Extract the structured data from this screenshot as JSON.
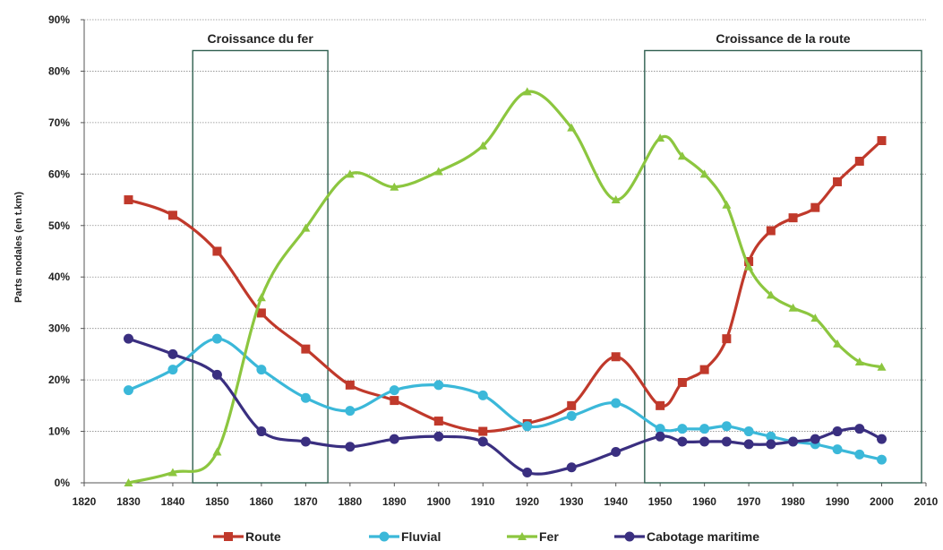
{
  "chart_data": {
    "type": "line",
    "title": "",
    "xlabel": "",
    "ylabel": "Parts modales (en t.km)",
    "xlim": [
      1820,
      2010
    ],
    "ylim": [
      0,
      90
    ],
    "x_ticks": [
      "1820",
      "1830",
      "1840",
      "1850",
      "1860",
      "1870",
      "1880",
      "1890",
      "1900",
      "1910",
      "1920",
      "1930",
      "1940",
      "1950",
      "1960",
      "1970",
      "1980",
      "1990",
      "2000",
      "2010"
    ],
    "y_ticks": [
      "0%",
      "10%",
      "20%",
      "30%",
      "40%",
      "50%",
      "60%",
      "70%",
      "80%",
      "90%"
    ],
    "grid": true,
    "legend_position": "bottom",
    "annotations": [
      {
        "label": "Croissance du fer",
        "x_start": 1844.5,
        "x_end": 1875
      },
      {
        "label": "Croissance de la route",
        "x_start": 1946.5,
        "x_end": 2009
      }
    ],
    "series": [
      {
        "name": "Route",
        "color": "#c0392b",
        "marker": "square",
        "x": [
          1830,
          1840,
          1850,
          1860,
          1870,
          1880,
          1890,
          1900,
          1910,
          1920,
          1930,
          1940,
          1950,
          1955,
          1960,
          1965,
          1970,
          1975,
          1980,
          1985,
          1990,
          1995,
          2000
        ],
        "y": [
          55,
          52,
          45,
          33,
          26,
          19,
          16,
          12,
          10,
          11.5,
          15,
          24.5,
          15,
          19.5,
          22,
          28,
          43,
          49,
          51.5,
          53.5,
          58.5,
          62.5,
          66.5
        ]
      },
      {
        "name": "Fluvial",
        "color": "#3bb8d9",
        "marker": "circle",
        "x": [
          1830,
          1840,
          1850,
          1860,
          1870,
          1880,
          1890,
          1900,
          1910,
          1920,
          1930,
          1940,
          1950,
          1955,
          1960,
          1965,
          1970,
          1975,
          1980,
          1985,
          1990,
          1995,
          2000
        ],
        "y": [
          18,
          22,
          28,
          22,
          16.5,
          14,
          18,
          19,
          17,
          11,
          13,
          15.5,
          10.5,
          10.5,
          10.5,
          11,
          10,
          9,
          8,
          7.5,
          6.5,
          5.5,
          4.5
        ]
      },
      {
        "name": "Fer",
        "color": "#8cc63f",
        "marker": "triangle",
        "x": [
          1830,
          1840,
          1850,
          1860,
          1870,
          1880,
          1890,
          1900,
          1910,
          1920,
          1930,
          1940,
          1950,
          1955,
          1960,
          1965,
          1970,
          1975,
          1980,
          1985,
          1990,
          1995,
          2000
        ],
        "y": [
          0,
          2,
          6,
          36,
          49.5,
          60,
          57.5,
          60.5,
          65.5,
          76,
          69,
          55,
          67,
          63.5,
          60,
          54,
          42,
          36.5,
          34,
          32,
          27,
          23.5,
          22.5
        ]
      },
      {
        "name": "Cabotage maritime",
        "color": "#3a2f80",
        "marker": "circle",
        "x": [
          1830,
          1840,
          1850,
          1860,
          1870,
          1880,
          1890,
          1900,
          1910,
          1920,
          1930,
          1940,
          1950,
          1955,
          1960,
          1965,
          1970,
          1975,
          1980,
          1985,
          1990,
          1995,
          2000
        ],
        "y": [
          28,
          25,
          21,
          10,
          8,
          7,
          8.5,
          9,
          8,
          2,
          3,
          6,
          9,
          8,
          8,
          8,
          7.5,
          7.5,
          8,
          8.5,
          10,
          10.5,
          8.5
        ]
      }
    ]
  }
}
